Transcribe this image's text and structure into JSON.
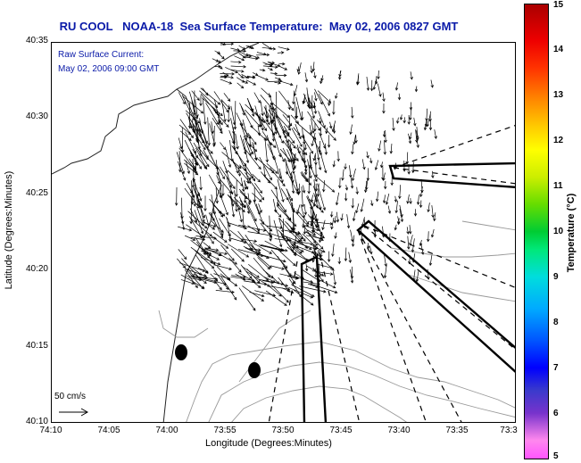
{
  "title": "RU COOL   NOAA-18  Sea Surface Temperature:  May 02, 2006 0827 GMT",
  "current_label_1": "Raw Surface Current:",
  "current_label_2": "May 02, 2006 09:00 GMT",
  "scale_label": "50 cm/s",
  "y_axis_label": "Latitude (Degrees:Minutes)",
  "x_axis_label": "Longitude (Degrees:Minutes)",
  "y_ticks": [
    "40:35",
    "40:30",
    "40:25",
    "40:20",
    "40:15",
    "40:10"
  ],
  "x_ticks": [
    "74:10",
    "74:05",
    "74:00",
    "73:55",
    "73:50",
    "73:45",
    "73:40",
    "73:35",
    "73:3"
  ],
  "colorbar": {
    "label": "Temperature (°C)",
    "ticks": [
      "15",
      "14",
      "13",
      "12",
      "11",
      "10",
      "9",
      "8",
      "7",
      "6",
      "5"
    ],
    "range": [
      5,
      15
    ]
  },
  "map": {
    "lat_range": [
      "40:10",
      "40:35"
    ],
    "lon_range": [
      "74:10",
      "73:3"
    ],
    "has_coastline": true,
    "has_bathymetry_contours": true,
    "has_current_vectors": true,
    "markers": 2
  }
}
